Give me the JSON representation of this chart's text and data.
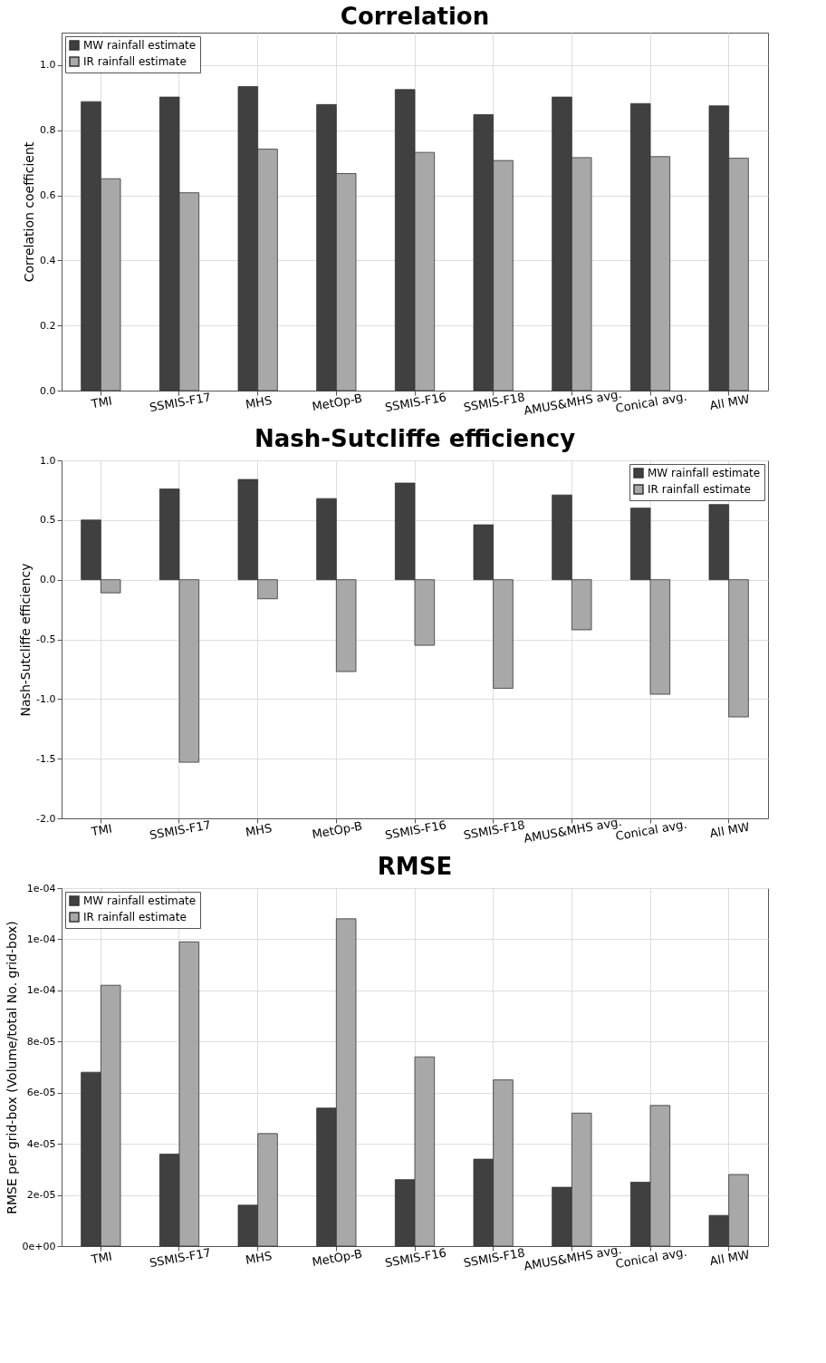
{
  "chart_data": [
    {
      "type": "bar",
      "title": "Correlation",
      "ylabel": "Correlation coefficient",
      "categories": [
        "TMI",
        "SSMIS-F17",
        "MHS",
        "MetOp-B",
        "SSMIS-F16",
        "SSMIS-F18",
        "AMUS&MHS avg.",
        "Conical avg.",
        "All MW"
      ],
      "series": [
        {
          "name": "MW rainfall estimate",
          "color": "#404040",
          "values": [
            0.888,
            0.902,
            0.934,
            0.879,
            0.925,
            0.848,
            0.902,
            0.882,
            0.875
          ]
        },
        {
          "name": "IR rainfall estimate",
          "color": "#a8a8a8",
          "values": [
            0.651,
            0.608,
            0.742,
            0.667,
            0.732,
            0.707,
            0.716,
            0.719,
            0.714
          ]
        }
      ],
      "ylim": [
        0,
        1.1
      ],
      "yticks": [
        {
          "value": 0,
          "label": "0.0"
        },
        0.2,
        0.4,
        0.6,
        0.8,
        {
          "value": 1,
          "label": "1.0"
        }
      ],
      "grid": true,
      "legend": "top left"
    },
    {
      "type": "bar",
      "title": "Nash-Sutcliffe efficiency",
      "ylabel": "Nash-Sutcliffe efficiency",
      "categories": [
        "TMI",
        "SSMIS-F17",
        "MHS",
        "MetOp-B",
        "SSMIS-F16",
        "SSMIS-F18",
        "AMUS&MHS avg.",
        "Conical avg.",
        "All MW"
      ],
      "series": [
        {
          "name": "MW rainfall estimate",
          "color": "#404040",
          "values": [
            0.5,
            0.76,
            0.84,
            0.68,
            0.81,
            0.46,
            0.71,
            0.6,
            0.63
          ]
        },
        {
          "name": "IR rainfall estimate",
          "color": "#a8a8a8",
          "values": [
            -0.11,
            -1.53,
            -0.16,
            -0.77,
            -0.55,
            -0.91,
            -0.42,
            -0.96,
            -1.15
          ]
        }
      ],
      "ylim": [
        -2.0,
        1.0
      ],
      "yticks": [
        {
          "value": -2,
          "label": "-2.0"
        },
        -1.5,
        {
          "value": -1,
          "label": "-1.0"
        },
        -0.5,
        {
          "value": 0,
          "label": "0.0"
        },
        0.5,
        {
          "value": 1,
          "label": "1.0"
        }
      ],
      "grid": true,
      "legend": "top right"
    },
    {
      "type": "bar",
      "title": "RMSE",
      "ylabel": "RMSE per grid-box (Volume/total No. grid-box)",
      "categories": [
        "TMI",
        "SSMIS-F17",
        "MHS",
        "MetOp-B",
        "SSMIS-F16",
        "SSMIS-F18",
        "AMUS&MHS avg.",
        "Conical avg.",
        "All MW"
      ],
      "series": [
        {
          "name": "MW rainfall estimate",
          "color": "#404040",
          "values": [
            6.8e-05,
            3.6e-05,
            1.6e-05,
            5.4e-05,
            2.6e-05,
            3.4e-05,
            2.3e-05,
            2.5e-05,
            1.2e-05
          ]
        },
        {
          "name": "IR rainfall estimate",
          "color": "#a8a8a8",
          "values": [
            0.000102,
            0.000119,
            4.4e-05,
            0.000128,
            7.4e-05,
            6.5e-05,
            5.2e-05,
            5.5e-05,
            2.8e-05
          ]
        }
      ],
      "ylim": [
        0,
        0.00014
      ],
      "yticks": [
        {
          "value": 0,
          "label": "0e+00"
        },
        {
          "value": 2e-05,
          "label": "2e-05"
        },
        {
          "value": 4e-05,
          "label": "4e-05"
        },
        {
          "value": 6e-05,
          "label": "6e-05"
        },
        {
          "value": 8e-05,
          "label": "8e-05"
        },
        {
          "value": 0.0001,
          "label": "1e-04"
        },
        {
          "value": 0.00012,
          "label": "1e-04"
        },
        {
          "value": 0.00014,
          "label": "1e-04"
        }
      ],
      "grid": true,
      "legend": "top left"
    }
  ]
}
